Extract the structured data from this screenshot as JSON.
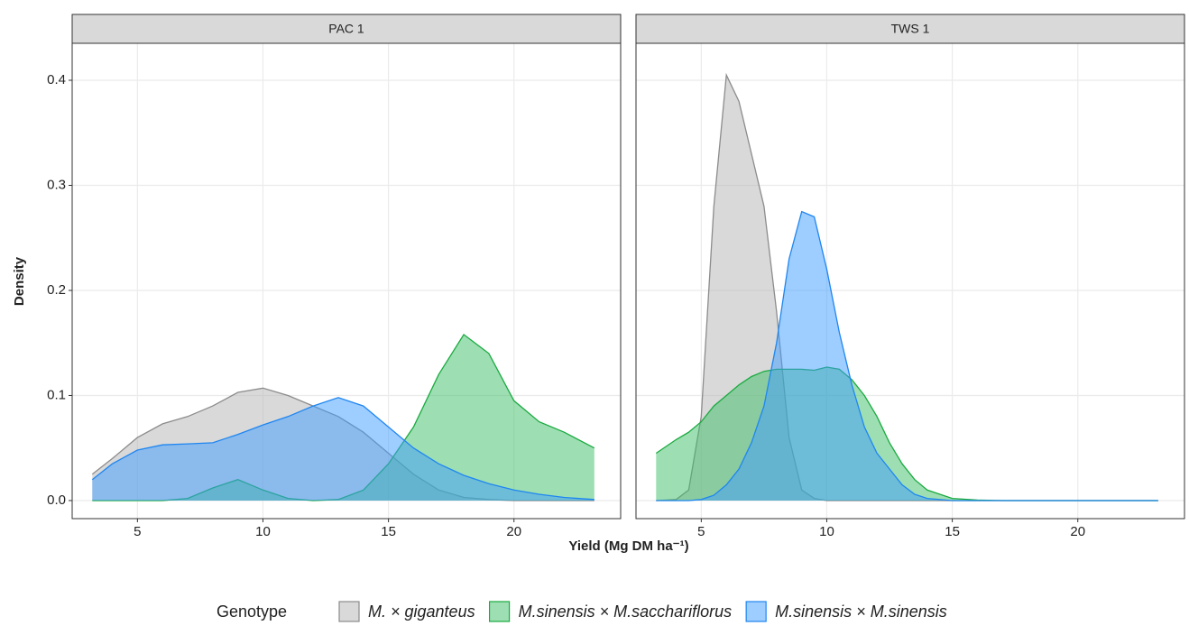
{
  "chart_data": [
    {
      "type": "area",
      "title": "PAC 1",
      "x": [
        3.2,
        4,
        5,
        6,
        7,
        8,
        9,
        10,
        11,
        12,
        13,
        14,
        15,
        16,
        17,
        18,
        19,
        20,
        21,
        22,
        23.2
      ],
      "series": [
        {
          "name": "M. × giganteus",
          "color": "#b3b3b3",
          "line_color": "#8c8c8c",
          "values": [
            0.025,
            0.04,
            0.06,
            0.073,
            0.08,
            0.09,
            0.103,
            0.107,
            0.1,
            0.09,
            0.08,
            0.065,
            0.045,
            0.025,
            0.01,
            0.003,
            0.001,
            0,
            0,
            0,
            0
          ]
        },
        {
          "name": "M.sinensis × M.sacchariflorus",
          "color": "#3cc066",
          "line_color": "#1aaa40",
          "values": [
            0,
            0,
            0,
            0,
            0.002,
            0.012,
            0.02,
            0.01,
            0.002,
            0,
            0.001,
            0.01,
            0.035,
            0.07,
            0.12,
            0.158,
            0.14,
            0.095,
            0.075,
            0.065,
            0.05
          ]
        },
        {
          "name": "M.sinensis × M.sinensis",
          "color": "#3d9bff",
          "line_color": "#1f86f0",
          "values": [
            0.02,
            0.035,
            0.048,
            0.053,
            0.054,
            0.055,
            0.063,
            0.072,
            0.08,
            0.09,
            0.098,
            0.09,
            0.07,
            0.05,
            0.035,
            0.024,
            0.016,
            0.01,
            0.006,
            0.003,
            0.001
          ]
        }
      ],
      "xlim": [
        2.4,
        24.25
      ],
      "ylim": [
        -0.0172,
        0.4352
      ],
      "xticks": [
        5,
        10,
        15,
        20
      ],
      "yticks": [
        {
          "value": 0,
          "label": "0.0"
        },
        0.1,
        0.2,
        0.3,
        0.4
      ],
      "grid": true
    },
    {
      "type": "area",
      "title": "TWS 1",
      "x": [
        3.2,
        4,
        4.5,
        5,
        5.5,
        6,
        6.5,
        7,
        7.5,
        8,
        8.5,
        9,
        9.5,
        10,
        10.5,
        11,
        11.5,
        12,
        12.5,
        13,
        13.5,
        14,
        15,
        16,
        17,
        18,
        19,
        20,
        21,
        22,
        23.2
      ],
      "series": [
        {
          "name": "M. × giganteus",
          "color": "#b3b3b3",
          "line_color": "#8c8c8c",
          "values": [
            0,
            0.001,
            0.01,
            0.08,
            0.28,
            0.405,
            0.38,
            0.33,
            0.28,
            0.18,
            0.06,
            0.01,
            0.002,
            0,
            0,
            0,
            0,
            0,
            0,
            0,
            0,
            0,
            0,
            0,
            0,
            0,
            0,
            0,
            0,
            0,
            0
          ]
        },
        {
          "name": "M.sinensis × M.sacchariflorus",
          "color": "#3cc066",
          "line_color": "#1aaa40",
          "values": [
            0.045,
            0.058,
            0.065,
            0.075,
            0.09,
            0.1,
            0.11,
            0.118,
            0.123,
            0.125,
            0.125,
            0.125,
            0.124,
            0.127,
            0.125,
            0.115,
            0.1,
            0.08,
            0.055,
            0.035,
            0.02,
            0.01,
            0.002,
            0.0005,
            0,
            0,
            0,
            0,
            0,
            0,
            0
          ]
        },
        {
          "name": "M.sinensis × M.sinensis",
          "color": "#3d9bff",
          "line_color": "#1f86f0",
          "values": [
            0,
            0,
            0,
            0.001,
            0.005,
            0.015,
            0.03,
            0.055,
            0.09,
            0.15,
            0.23,
            0.275,
            0.27,
            0.22,
            0.16,
            0.11,
            0.07,
            0.045,
            0.03,
            0.015,
            0.006,
            0.002,
            0,
            0,
            0,
            0,
            0,
            0,
            0,
            0,
            0
          ]
        }
      ],
      "xlim": [
        2.4,
        24.25
      ],
      "ylim": [
        -0.0172,
        0.4352
      ],
      "xticks": [
        5,
        10,
        15,
        20
      ],
      "yticks": [
        0,
        0.1,
        0.2,
        0.3,
        0.4
      ],
      "grid": true
    }
  ],
  "x_label": "Yield (Mg DM ha⁻¹)",
  "y_label": "Density",
  "legend_title": "Genotype"
}
